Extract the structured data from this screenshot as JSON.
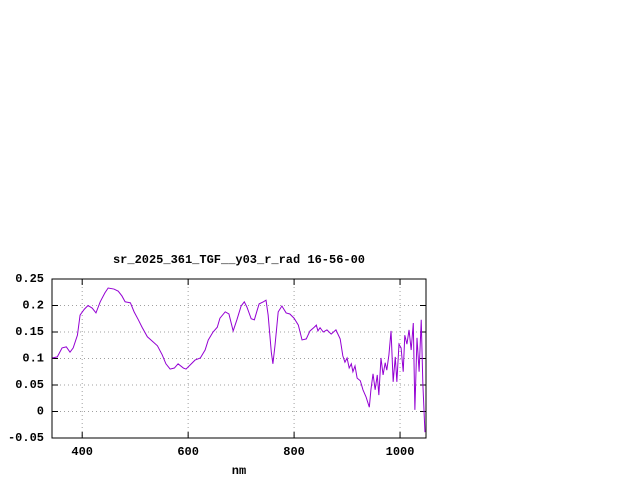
{
  "chart_data": {
    "type": "line",
    "title": "sr_2025_361_TGF__y03_r_rad 16-56-00",
    "x_label": "nm",
    "color": "#9400d3",
    "grid": true,
    "xlim": [
      343,
      1049
    ],
    "ylim": [
      -0.05,
      0.25
    ],
    "xticks": [
      400,
      600,
      800,
      1000
    ],
    "yticks": [
      -0.05,
      0,
      0.05,
      0.1,
      0.15,
      0.2,
      0.25
    ],
    "x": [
      343,
      353,
      362,
      370,
      377,
      383,
      391,
      396,
      404,
      411,
      419,
      426,
      434,
      443,
      449,
      460,
      468,
      475,
      481,
      491,
      498,
      506,
      513,
      523,
      532,
      542,
      551,
      558,
      566,
      574,
      581,
      591,
      596,
      604,
      613,
      623,
      632,
      638,
      647,
      655,
      660,
      670,
      677,
      685,
      692,
      700,
      706,
      711,
      719,
      725,
      730,
      734,
      742,
      747,
      751,
      757,
      760,
      764,
      770,
      777,
      785,
      792,
      800,
      808,
      815,
      823,
      830,
      838,
      842,
      845,
      849,
      855,
      862,
      870,
      879,
      887,
      892,
      896,
      900,
      904,
      908,
      911,
      915,
      919,
      925,
      930,
      936,
      942,
      945,
      949,
      953,
      957,
      960,
      964,
      968,
      972,
      975,
      979,
      983,
      987,
      991,
      994,
      998,
      1002,
      1006,
      1009,
      1013,
      1017,
      1021,
      1025,
      1028,
      1032,
      1036,
      1040,
      1043,
      1047
    ],
    "values": [
      0.101,
      0.103,
      0.12,
      0.122,
      0.112,
      0.12,
      0.144,
      0.182,
      0.193,
      0.2,
      0.195,
      0.186,
      0.207,
      0.224,
      0.233,
      0.231,
      0.227,
      0.218,
      0.207,
      0.205,
      0.188,
      0.173,
      0.159,
      0.141,
      0.133,
      0.124,
      0.107,
      0.09,
      0.08,
      0.082,
      0.09,
      0.082,
      0.08,
      0.088,
      0.097,
      0.101,
      0.116,
      0.135,
      0.15,
      0.159,
      0.176,
      0.188,
      0.184,
      0.152,
      0.173,
      0.199,
      0.207,
      0.197,
      0.175,
      0.173,
      0.19,
      0.203,
      0.207,
      0.21,
      0.182,
      0.112,
      0.09,
      0.125,
      0.188,
      0.199,
      0.186,
      0.184,
      0.176,
      0.163,
      0.135,
      0.137,
      0.152,
      0.159,
      0.163,
      0.152,
      0.158,
      0.15,
      0.154,
      0.146,
      0.154,
      0.137,
      0.105,
      0.093,
      0.101,
      0.082,
      0.09,
      0.075,
      0.086,
      0.063,
      0.058,
      0.041,
      0.027,
      0.008,
      0.041,
      0.071,
      0.041,
      0.069,
      0.031,
      0.101,
      0.069,
      0.092,
      0.078,
      0.107,
      0.152,
      0.056,
      0.103,
      0.056,
      0.127,
      0.12,
      0.075,
      0.144,
      0.127,
      0.154,
      0.116,
      0.167,
      0.003,
      0.139,
      0.075,
      0.173,
      0.054,
      -0.039
    ]
  }
}
